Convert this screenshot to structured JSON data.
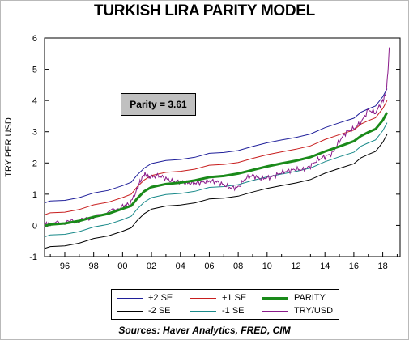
{
  "chart_data": {
    "type": "line",
    "title": "TURKISH LIRA PARITY MODEL",
    "ylabel": "TRY PER USD",
    "xlabel": "",
    "ylim": [
      -1,
      6
    ],
    "xlim": [
      1994.6,
      2019.2
    ],
    "yticks": [
      "-1",
      "0",
      "1",
      "2",
      "3",
      "4",
      "5",
      "6"
    ],
    "xticks": [
      "96",
      "98",
      "00",
      "02",
      "04",
      "06",
      "08",
      "10",
      "12",
      "14",
      "16",
      "18"
    ],
    "grid": false,
    "legend_position": "bottom",
    "annotation": "Parity = 3.61",
    "source": "Sources:  Haver Analytics, FRED, CIM",
    "series": [
      {
        "name": "+2 SE",
        "color": "#1f1f9a",
        "offset": 0.75
      },
      {
        "name": "+1 SE",
        "color": "#c81e1e",
        "offset": 0.37
      },
      {
        "name": "PARITY",
        "color": "#1a8a1a",
        "offset": 0
      },
      {
        "name": "-2 SE",
        "color": "#000000",
        "offset": -0.71
      },
      {
        "name": "-1 SE",
        "color": "#1a8a8a",
        "offset": -0.34
      },
      {
        "name": "TRY/USD",
        "color": "#8a1a8a",
        "offset": null
      }
    ],
    "parity": {
      "x": [
        1994.6,
        1995,
        1996,
        1997,
        1998,
        1999,
        2000,
        2000.6,
        2001.0,
        2001.5,
        2002,
        2003,
        2004,
        2005,
        2006,
        2007,
        2008,
        2009,
        2010,
        2011,
        2012,
        2013,
        2014,
        2015,
        2016,
        2016.5,
        2017,
        2017.5,
        2018,
        2018.3
      ],
      "values": [
        0.0,
        0.02,
        0.08,
        0.15,
        0.25,
        0.38,
        0.55,
        0.62,
        0.85,
        1.1,
        1.22,
        1.32,
        1.38,
        1.45,
        1.52,
        1.58,
        1.68,
        1.77,
        1.88,
        1.98,
        2.08,
        2.2,
        2.35,
        2.52,
        2.72,
        2.85,
        2.98,
        3.1,
        3.35,
        3.61
      ]
    },
    "try_usd": {
      "x": [
        1994.6,
        1995,
        1996,
        1997,
        1998,
        1999,
        2000,
        2000.5,
        2001.0,
        2001.2,
        2001.5,
        2001.8,
        2002,
        2002.5,
        2003,
        2003.5,
        2004,
        2004.5,
        2005,
        2005.5,
        2006,
        2006.5,
        2007,
        2007.5,
        2008,
        2008.5,
        2009,
        2009.5,
        2010,
        2010.5,
        2011,
        2011.5,
        2012,
        2012.5,
        2013,
        2013.5,
        2014,
        2014.5,
        2015,
        2015.5,
        2016,
        2016.5,
        2017,
        2017.5,
        2018,
        2018.2,
        2018.35,
        2018.45
      ],
      "values": [
        0.03,
        0.05,
        0.1,
        0.15,
        0.26,
        0.42,
        0.62,
        0.68,
        1.15,
        1.4,
        1.65,
        1.55,
        1.55,
        1.6,
        1.5,
        1.4,
        1.4,
        1.35,
        1.35,
        1.38,
        1.42,
        1.4,
        1.3,
        1.2,
        1.22,
        1.5,
        1.6,
        1.5,
        1.52,
        1.58,
        1.7,
        1.75,
        1.8,
        1.78,
        1.9,
        2.1,
        2.2,
        2.3,
        2.7,
        3.0,
        3.1,
        3.3,
        3.7,
        3.6,
        4.0,
        4.2,
        4.8,
        5.7
      ]
    }
  }
}
